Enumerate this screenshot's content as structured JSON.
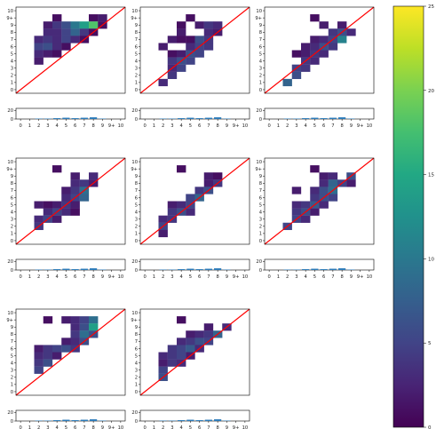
{
  "chart_data": {
    "type": "heatmap",
    "panels_layout": "3x3 grid, 8 panels",
    "axis_tick_labels": [
      "0",
      "1",
      "2",
      "3",
      "4",
      "5",
      "6",
      "7",
      "8",
      "9",
      "9+",
      "10"
    ],
    "bar_axis_ticks": [
      "0",
      "20"
    ],
    "bar_ylim": [
      0,
      25
    ],
    "color_range": [
      0,
      25
    ],
    "colorbar_ticks": [
      "0",
      "5",
      "10",
      "15",
      "20",
      "25"
    ],
    "diagonal_color": "#ff0000",
    "bar_color": "#2b7bba",
    "bar_values": [
      0,
      0,
      1,
      1,
      2,
      3,
      2,
      3,
      4,
      1,
      0,
      0
    ],
    "panels": [
      {
        "cells": [
          [
            4,
            10,
            1
          ],
          [
            8,
            10,
            1
          ],
          [
            9,
            10,
            2
          ],
          [
            3,
            9,
            2
          ],
          [
            4,
            9,
            4
          ],
          [
            5,
            9,
            6
          ],
          [
            6,
            9,
            10
          ],
          [
            7,
            9,
            14
          ],
          [
            8,
            9,
            18
          ],
          [
            9,
            9,
            1
          ],
          [
            3,
            8,
            3
          ],
          [
            4,
            8,
            3
          ],
          [
            5,
            8,
            5
          ],
          [
            6,
            8,
            8
          ],
          [
            7,
            8,
            4
          ],
          [
            8,
            8,
            1
          ],
          [
            2,
            7,
            3
          ],
          [
            3,
            7,
            4
          ],
          [
            4,
            7,
            3
          ],
          [
            5,
            7,
            5
          ],
          [
            6,
            7,
            3
          ],
          [
            7,
            7,
            1
          ],
          [
            2,
            6,
            5
          ],
          [
            3,
            6,
            6
          ],
          [
            4,
            6,
            3
          ],
          [
            5,
            6,
            1
          ],
          [
            2,
            5,
            3
          ],
          [
            3,
            5,
            2
          ],
          [
            4,
            5,
            1
          ],
          [
            2,
            4,
            2
          ]
        ]
      },
      {
        "cells": [
          [
            5,
            10,
            1
          ],
          [
            4,
            9,
            1
          ],
          [
            6,
            9,
            2
          ],
          [
            7,
            9,
            4
          ],
          [
            8,
            9,
            3
          ],
          [
            4,
            8,
            2
          ],
          [
            7,
            8,
            3
          ],
          [
            8,
            8,
            2
          ],
          [
            3,
            7,
            2
          ],
          [
            4,
            7,
            1
          ],
          [
            5,
            7,
            1
          ],
          [
            6,
            7,
            6
          ],
          [
            7,
            7,
            4
          ],
          [
            2,
            6,
            2
          ],
          [
            5,
            6,
            3
          ],
          [
            6,
            6,
            5
          ],
          [
            7,
            6,
            4
          ],
          [
            3,
            5,
            1
          ],
          [
            4,
            5,
            2
          ],
          [
            5,
            5,
            6
          ],
          [
            6,
            5,
            5
          ],
          [
            3,
            4,
            4
          ],
          [
            4,
            4,
            6
          ],
          [
            5,
            4,
            5
          ],
          [
            3,
            3,
            3
          ],
          [
            4,
            3,
            5
          ],
          [
            3,
            2,
            4
          ],
          [
            2,
            1,
            3
          ]
        ]
      },
      {
        "cells": [
          [
            5,
            10,
            1
          ],
          [
            6,
            9,
            2
          ],
          [
            8,
            9,
            2
          ],
          [
            7,
            8,
            4
          ],
          [
            8,
            8,
            6
          ],
          [
            9,
            8,
            3
          ],
          [
            5,
            7,
            2
          ],
          [
            6,
            7,
            3
          ],
          [
            7,
            7,
            5
          ],
          [
            8,
            7,
            11
          ],
          [
            4,
            6,
            2
          ],
          [
            5,
            6,
            3
          ],
          [
            6,
            6,
            6
          ],
          [
            7,
            6,
            4
          ],
          [
            3,
            5,
            1
          ],
          [
            4,
            5,
            2
          ],
          [
            5,
            5,
            4
          ],
          [
            6,
            5,
            3
          ],
          [
            4,
            4,
            4
          ],
          [
            5,
            4,
            3
          ],
          [
            3,
            3,
            5
          ],
          [
            4,
            3,
            4
          ],
          [
            3,
            2,
            6
          ],
          [
            2,
            1,
            8
          ]
        ]
      },
      {
        "cells": [
          [
            4,
            10,
            1
          ],
          [
            6,
            9,
            2
          ],
          [
            8,
            9,
            3
          ],
          [
            6,
            8,
            3
          ],
          [
            7,
            8,
            4
          ],
          [
            8,
            8,
            2
          ],
          [
            5,
            7,
            2
          ],
          [
            6,
            7,
            4
          ],
          [
            7,
            7,
            9
          ],
          [
            5,
            6,
            3
          ],
          [
            6,
            6,
            5
          ],
          [
            7,
            6,
            8
          ],
          [
            2,
            5,
            2
          ],
          [
            3,
            5,
            1
          ],
          [
            4,
            5,
            2
          ],
          [
            5,
            5,
            4
          ],
          [
            6,
            5,
            2
          ],
          [
            3,
            4,
            3
          ],
          [
            4,
            4,
            5
          ],
          [
            5,
            4,
            3
          ],
          [
            6,
            4,
            1
          ],
          [
            2,
            3,
            3
          ],
          [
            3,
            3,
            5
          ],
          [
            4,
            3,
            2
          ],
          [
            2,
            2,
            4
          ]
        ]
      },
      {
        "cells": [
          [
            4,
            10,
            1
          ],
          [
            7,
            9,
            2
          ],
          [
            8,
            9,
            1
          ],
          [
            7,
            8,
            2
          ],
          [
            8,
            8,
            4
          ],
          [
            6,
            7,
            4
          ],
          [
            7,
            7,
            6
          ],
          [
            5,
            6,
            5
          ],
          [
            6,
            6,
            8
          ],
          [
            3,
            5,
            2
          ],
          [
            4,
            5,
            3
          ],
          [
            5,
            5,
            5
          ],
          [
            3,
            4,
            4
          ],
          [
            4,
            4,
            6
          ],
          [
            5,
            4,
            3
          ],
          [
            2,
            3,
            3
          ],
          [
            3,
            3,
            4
          ],
          [
            2,
            2,
            5
          ],
          [
            2,
            1,
            2
          ]
        ]
      },
      {
        "cells": [
          [
            5,
            10,
            1
          ],
          [
            6,
            9,
            2
          ],
          [
            7,
            9,
            3
          ],
          [
            9,
            9,
            6
          ],
          [
            6,
            8,
            3
          ],
          [
            7,
            8,
            8
          ],
          [
            8,
            8,
            5
          ],
          [
            9,
            8,
            2
          ],
          [
            3,
            7,
            2
          ],
          [
            5,
            7,
            3
          ],
          [
            6,
            7,
            6
          ],
          [
            7,
            7,
            9
          ],
          [
            5,
            6,
            4
          ],
          [
            6,
            6,
            6
          ],
          [
            7,
            6,
            5
          ],
          [
            3,
            5,
            3
          ],
          [
            4,
            5,
            4
          ],
          [
            5,
            5,
            7
          ],
          [
            6,
            5,
            3
          ],
          [
            3,
            4,
            4
          ],
          [
            4,
            4,
            6
          ],
          [
            5,
            4,
            2
          ],
          [
            3,
            3,
            5
          ],
          [
            4,
            3,
            3
          ],
          [
            2,
            2,
            5
          ]
        ]
      },
      {
        "cells": [
          [
            3,
            10,
            1
          ],
          [
            5,
            10,
            2
          ],
          [
            6,
            10,
            3
          ],
          [
            7,
            10,
            5
          ],
          [
            8,
            10,
            9
          ],
          [
            6,
            9,
            3
          ],
          [
            7,
            9,
            6
          ],
          [
            8,
            9,
            14
          ],
          [
            6,
            8,
            4
          ],
          [
            7,
            8,
            9
          ],
          [
            8,
            8,
            6
          ],
          [
            5,
            7,
            2
          ],
          [
            6,
            7,
            3
          ],
          [
            7,
            7,
            6
          ],
          [
            2,
            6,
            2
          ],
          [
            3,
            6,
            4
          ],
          [
            4,
            6,
            5
          ],
          [
            5,
            6,
            6
          ],
          [
            6,
            6,
            4
          ],
          [
            2,
            5,
            3
          ],
          [
            3,
            5,
            4
          ],
          [
            4,
            5,
            2
          ],
          [
            2,
            4,
            4
          ],
          [
            3,
            4,
            6
          ],
          [
            2,
            3,
            5
          ]
        ]
      },
      {
        "cells": [
          [
            4,
            10,
            1
          ],
          [
            7,
            9,
            2
          ],
          [
            9,
            9,
            3
          ],
          [
            5,
            8,
            2
          ],
          [
            6,
            8,
            3
          ],
          [
            7,
            8,
            4
          ],
          [
            8,
            8,
            8
          ],
          [
            4,
            7,
            3
          ],
          [
            5,
            7,
            4
          ],
          [
            6,
            7,
            6
          ],
          [
            7,
            7,
            5
          ],
          [
            3,
            6,
            4
          ],
          [
            4,
            6,
            5
          ],
          [
            5,
            6,
            7
          ],
          [
            6,
            6,
            3
          ],
          [
            2,
            5,
            3
          ],
          [
            3,
            5,
            4
          ],
          [
            4,
            5,
            5
          ],
          [
            5,
            5,
            2
          ],
          [
            2,
            4,
            2
          ],
          [
            3,
            4,
            4
          ],
          [
            4,
            4,
            3
          ],
          [
            2,
            3,
            5
          ],
          [
            2,
            2,
            6
          ]
        ]
      }
    ]
  }
}
